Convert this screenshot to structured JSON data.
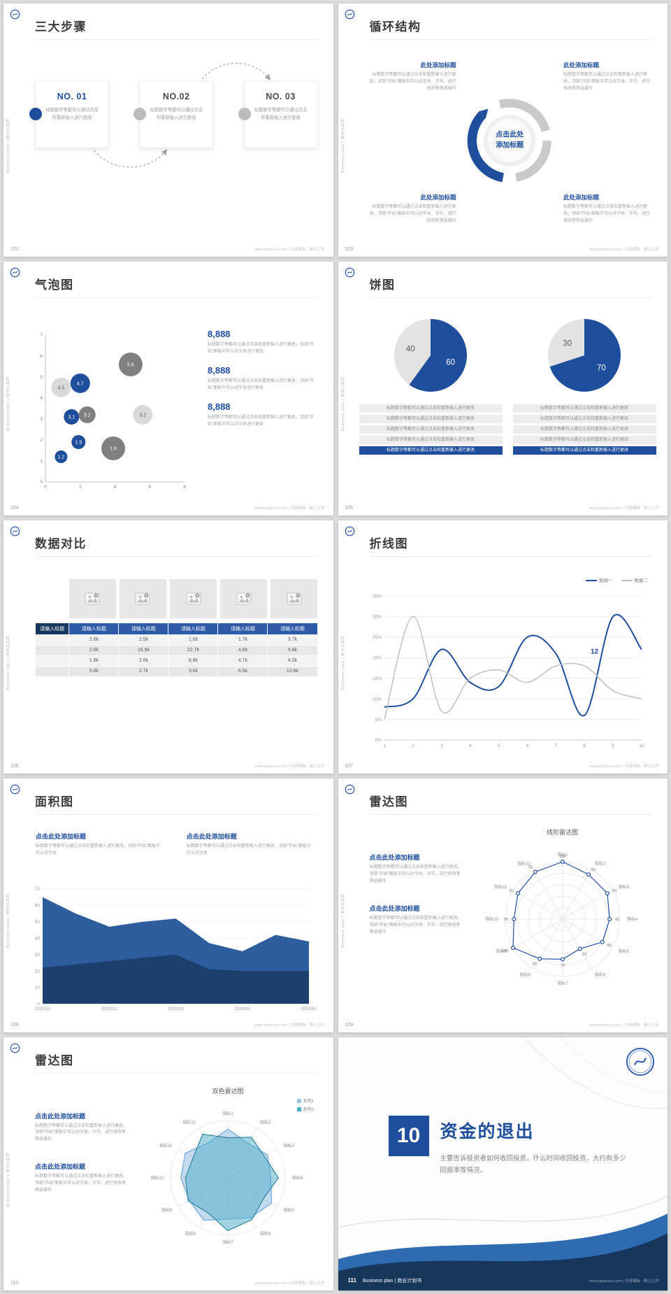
{
  "chrome": {
    "side_label": "Business plan | 商业计划书",
    "footer_site": "www.pptgroua.com | 内容模板 · 精心之作"
  },
  "slides": {
    "s102": {
      "num": "102",
      "title": "三大步骤",
      "steps": [
        {
          "no": "NO. 01",
          "body": "标题数字等都可以通过点击和重新输入进行更改"
        },
        {
          "no": "NO.02",
          "body": "标题数字等都可以通过点击和重新输入进行更改"
        },
        {
          "no": "NO. 03",
          "body": "标题数字等都可以通过点击和重新输入进行更改"
        }
      ]
    },
    "s103": {
      "num": "103",
      "title": "循环结构",
      "center_label": "点击此处添加标题",
      "items": [
        {
          "heading": "此处添加标题",
          "body": "标题数字等都可以通过点击和重新输入进行更改，顶部“开始”面板中可以对字体、字号、进行修改等筛选操作"
        },
        {
          "heading": "此处添加标题",
          "body": "标题数字等都可以通过点击和重新输入进行更改，顶部“开始”面板中可以对字体、字号、进行修改等筛选操作"
        },
        {
          "heading": "此处添加标题",
          "body": "标题数字等都可以通过点击和重新输入进行更改，顶部“开始”面板中可以对字体、字号、进行修改等筛选操作"
        },
        {
          "heading": "此处添加标题",
          "body": "标题数字等都可以通过点击和重新输入进行更改，顶部“开始”面板中可以对字体、字号、进行修改等筛选操作"
        }
      ]
    },
    "s104": {
      "num": "104",
      "title": "气泡图",
      "stats": [
        {
          "value": "8,888",
          "body": "标题数字等都可以通过点击和重新输入进行更改，顶部“开始”面板中可以对字体进行更改"
        },
        {
          "value": "8,888",
          "body": "标题数字等都可以通过点击和重新输入进行更改，顶部“开始”面板中可以对字体进行更改"
        },
        {
          "value": "8,888",
          "body": "标题数字等都可以通过点击和重新输入进行更改，顶部“开始”面板中可以对字体进行更改"
        }
      ]
    },
    "s105": {
      "num": "105",
      "title": "饼图",
      "rows": [
        "标题数字等都可以通过点击和重新输入进行更改",
        "标题数字等都可以通过点击和重新输入进行更改",
        "标题数字等都可以通过点击和重新输入进行更改",
        "标题数字等都可以通过点击和重新输入进行更改",
        "标题数字等都可以通过点击和重新输入进行更改"
      ]
    },
    "s106": {
      "num": "106",
      "title": "数据对比",
      "table": {
        "corner": "请输入标题",
        "headers": [
          "请输入标题",
          "请输入标题",
          "请输入标题",
          "请输入标题",
          "请输入标题"
        ],
        "rows": [
          [
            "2.6k",
            "2.5k",
            "1.6k",
            "1.7k",
            "3.7k"
          ],
          [
            "2.8k",
            "16.8k",
            "22.7k",
            "4.8k",
            "5.8k"
          ],
          [
            "1.6k",
            "2.6k",
            "6.8k",
            "4.7k",
            "4.5k"
          ],
          [
            "5.8k",
            "2.7k",
            "3.6k",
            "6.5k",
            "10.8k"
          ]
        ]
      }
    },
    "s107": {
      "num": "107",
      "title": "折线图"
    },
    "s108": {
      "num": "108",
      "title": "面积图",
      "blocks": [
        {
          "heading": "点击此处添加标题",
          "body": "标题数字等都可以通过点击和重新输入进行更改，顶部“开始”面板中可以对字体"
        },
        {
          "heading": "点击此处添加标题",
          "body": "标题数字等都可以通过点击和重新输入进行更改，顶部“开始”面板中可以对字体"
        }
      ]
    },
    "s109": {
      "num": "109",
      "title": "雷达图",
      "blocks": [
        {
          "heading": "点击此处添加标题",
          "body": "标题数字等都可以通过点击和重新输入进行更改，顶部“开始”面板中可以对字体、字号、进行修改等筛选操作"
        },
        {
          "heading": "点击此处添加标题",
          "body": "标题数字等都可以通过点击和重新输入进行更改，顶部“开始”面板中可以对字体、字号、进行修改等筛选操作"
        }
      ]
    },
    "s110": {
      "num": "110",
      "title": "雷达图",
      "blocks": [
        {
          "heading": "点击此处添加标题",
          "body": "标题数字等都可以通过点击和重新输入进行更改，顶部“开始”面板中可以对字体、字号、进行修改等筛选操作"
        },
        {
          "heading": "点击此处添加标题",
          "body": "标题数字等都可以通过点击和重新输入进行更改，顶部“开始”面板中可以对字体、字号、进行修改等筛选操作"
        }
      ]
    },
    "s111": {
      "num": "111",
      "section_no": "10",
      "title": "资金的退出",
      "body": "主要告诉投资者如何收回投资，什么时间收回投资，大约有多少回报率等情况。",
      "brand": "Business plan | 商业计划书"
    }
  },
  "chart_data": [
    {
      "id": "bubble-104",
      "type": "scatter",
      "xlim": [
        0,
        8
      ],
      "xticks": [
        0,
        2,
        4,
        6,
        8
      ],
      "ylim": [
        0,
        7
      ],
      "yticks": [
        0,
        1,
        2,
        3,
        4,
        5,
        6,
        7
      ],
      "points": [
        {
          "x": 0.9,
          "y": 4.5,
          "r": 14,
          "value": "4.5",
          "color": "#d9d9d9",
          "text_color": "#595959"
        },
        {
          "x": 2.0,
          "y": 4.7,
          "r": 14,
          "value": "4.7",
          "color": "#1f4e9c",
          "text_color": "#ffffff"
        },
        {
          "x": 4.9,
          "y": 5.6,
          "r": 17,
          "value": "5.6",
          "color": "#808080",
          "text_color": "#ffffff"
        },
        {
          "x": 1.5,
          "y": 3.1,
          "r": 11,
          "value": "3.1",
          "color": "#1f4e9c",
          "text_color": "#ffffff"
        },
        {
          "x": 2.4,
          "y": 3.2,
          "r": 12,
          "value": "3.2",
          "color": "#7f7f7f",
          "text_color": "#ffffff"
        },
        {
          "x": 5.6,
          "y": 3.2,
          "r": 14,
          "value": "3.2",
          "color": "#d9d9d9",
          "text_color": "#595959"
        },
        {
          "x": 1.9,
          "y": 1.9,
          "r": 10,
          "value": "1.9",
          "color": "#1f4e9c",
          "text_color": "#ffffff"
        },
        {
          "x": 0.9,
          "y": 1.2,
          "r": 9,
          "value": "1.2",
          "color": "#1f4e9c",
          "text_color": "#ffffff"
        },
        {
          "x": 3.9,
          "y": 1.6,
          "r": 17,
          "value": "1.6",
          "color": "#808080",
          "text_color": "#ffffff"
        }
      ]
    },
    {
      "id": "pie-105-1",
      "type": "pie",
      "slices": [
        {
          "value": 60,
          "label": "60",
          "color": "#1f4e9c",
          "label_color": "#ffffff"
        },
        {
          "value": 40,
          "label": "40",
          "color": "#e3e3e3",
          "label_color": "#595959"
        }
      ]
    },
    {
      "id": "pie-105-2",
      "type": "pie",
      "slices": [
        {
          "value": 70,
          "label": "70",
          "color": "#1f4e9c",
          "label_color": "#ffffff"
        },
        {
          "value": 30,
          "label": "30",
          "color": "#e3e3e3",
          "label_color": "#595959"
        }
      ]
    },
    {
      "id": "line-107",
      "type": "line",
      "x": [
        1,
        2,
        3,
        4,
        5,
        6,
        7,
        8,
        9,
        10
      ],
      "ylim": [
        0,
        35
      ],
      "ystep": 5,
      "series": [
        {
          "name": "数据一",
          "color": "#1f4e9c",
          "width": 2,
          "values": [
            8,
            10,
            22,
            14,
            13,
            25,
            21,
            6,
            30,
            22
          ]
        },
        {
          "name": "数据二",
          "color": "#bfbfbf",
          "width": 1.5,
          "values": [
            5,
            30,
            7,
            15,
            17,
            14,
            18,
            18,
            12,
            10
          ]
        }
      ],
      "annotation": {
        "x": 8.35,
        "y": 21,
        "text": "12",
        "color": "#1f4e9c"
      }
    },
    {
      "id": "area-108",
      "type": "area",
      "categories": [
        "2020/1/1",
        "2020/2/1",
        "2020/3/1",
        "2020/4/1",
        "2020/5/1"
      ],
      "ylim": [
        0,
        70
      ],
      "ystep": 10,
      "series": [
        {
          "color": "#2e5d9e",
          "values": [
            65,
            55,
            47,
            50,
            52,
            37,
            32,
            42,
            38
          ]
        },
        {
          "color": "#1d3f6e",
          "values": [
            22,
            24,
            26,
            28,
            30,
            21,
            20,
            20,
            20
          ]
        }
      ]
    },
    {
      "id": "radar-109",
      "type": "radar",
      "title": "线形雷达图",
      "max": 100,
      "rings": [
        20,
        40,
        60,
        80,
        100
      ],
      "labels": [
        "指标1",
        "指标2",
        "指标3",
        "指标4",
        "指标5",
        "指标6",
        "指标7",
        "指标8",
        "指标9",
        "指标10",
        "指标11",
        "指标12"
      ],
      "series": [
        {
          "color": "#1f4e9c",
          "stroke": "#1f4e9c",
          "fill_color": "none",
          "show_points": true,
          "values": [
            100,
            90,
            90,
            82,
            80,
            60,
            70,
            80,
            100,
            85,
            90,
            95
          ]
        }
      ]
    },
    {
      "id": "radar-110",
      "type": "radar",
      "title": "双色雷达图",
      "max": 100,
      "rings": [
        20,
        40,
        60,
        80,
        100
      ],
      "labels": [
        "指标1",
        "指标2",
        "指标3",
        "指标4",
        "指标5",
        "指标6",
        "指标7",
        "指标8",
        "指标9",
        "指标10",
        "指标11",
        "指标12"
      ],
      "series": [
        {
          "name": "系列1",
          "fill_color": "#9dc3e6",
          "stroke": "#6fa8dc",
          "opacity": 0.6,
          "values": [
            85,
            70,
            80,
            75,
            88,
            80,
            72,
            85,
            78,
            82,
            86,
            70
          ]
        },
        {
          "name": "系列2",
          "fill_color": "#4bacc6",
          "stroke": "#31859c",
          "opacity": 0.5,
          "values": [
            70,
            82,
            74,
            88,
            72,
            84,
            92,
            70,
            80,
            74,
            70,
            88
          ]
        }
      ]
    }
  ]
}
